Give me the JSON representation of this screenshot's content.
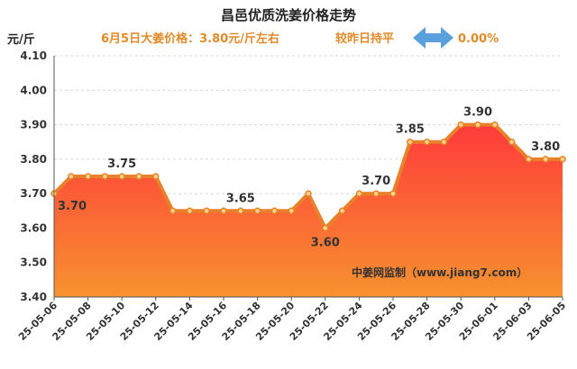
{
  "chart_data": {
    "type": "area",
    "title": "昌邑优质洗姜价格走势",
    "subtitle": "6月5日大姜价格：3.80元/斤左右",
    "comparison_label": "较昨日持平",
    "comparison_value": "0.00%",
    "ylabel": "元/斤",
    "ylim": [
      3.4,
      4.1
    ],
    "yticks": [
      "3.40",
      "3.50",
      "3.60",
      "3.70",
      "3.80",
      "3.90",
      "4.00",
      "4.10"
    ],
    "grid": true,
    "legend": "none",
    "source": "中姜网监制（www.jiang7.com）",
    "x": [
      "25-05-06",
      "25-05-07",
      "25-05-08",
      "25-05-09",
      "25-05-10",
      "25-05-11",
      "25-05-12",
      "25-05-13",
      "25-05-14",
      "25-05-15",
      "25-05-16",
      "25-05-17",
      "25-05-18",
      "25-05-19",
      "25-05-20",
      "25-05-21",
      "25-05-22",
      "25-05-23",
      "25-05-24",
      "25-05-25",
      "25-05-26",
      "25-05-27",
      "25-05-28",
      "25-05-29",
      "25-05-30",
      "25-05-31",
      "25-06-01",
      "25-06-02",
      "25-06-03",
      "25-06-04",
      "25-06-05"
    ],
    "xticks": [
      "25-05-06",
      "25-05-08",
      "25-05-10",
      "25-05-12",
      "25-05-14",
      "25-05-16",
      "25-05-18",
      "25-05-20",
      "25-05-22",
      "25-05-24",
      "25-05-26",
      "25-05-28",
      "25-05-30",
      "25-06-01",
      "25-06-03",
      "25-06-05"
    ],
    "values": [
      3.7,
      3.75,
      3.75,
      3.75,
      3.75,
      3.75,
      3.75,
      3.65,
      3.65,
      3.65,
      3.65,
      3.65,
      3.65,
      3.65,
      3.65,
      3.7,
      3.6,
      3.65,
      3.7,
      3.7,
      3.7,
      3.85,
      3.85,
      3.85,
      3.9,
      3.9,
      3.9,
      3.85,
      3.8,
      3.8,
      3.8
    ],
    "data_labels": [
      {
        "index": 0,
        "text": "3.70"
      },
      {
        "index": 4,
        "text": "3.75"
      },
      {
        "index": 11,
        "text": "3.65"
      },
      {
        "index": 16,
        "text": "3.60"
      },
      {
        "index": 19,
        "text": "3.70"
      },
      {
        "index": 21,
        "text": "3.85"
      },
      {
        "index": 25,
        "text": "3.90"
      },
      {
        "index": 29,
        "text": "3.80"
      }
    ],
    "colors": {
      "line": "#e8822a",
      "fill_top": "#ff3b3b",
      "fill_bottom": "#f7922f",
      "marker_fill": "#f6d28a",
      "grid": "#d6d6d6",
      "arrow": "#5aa0dd",
      "accent_text": "#e08a2a"
    }
  }
}
